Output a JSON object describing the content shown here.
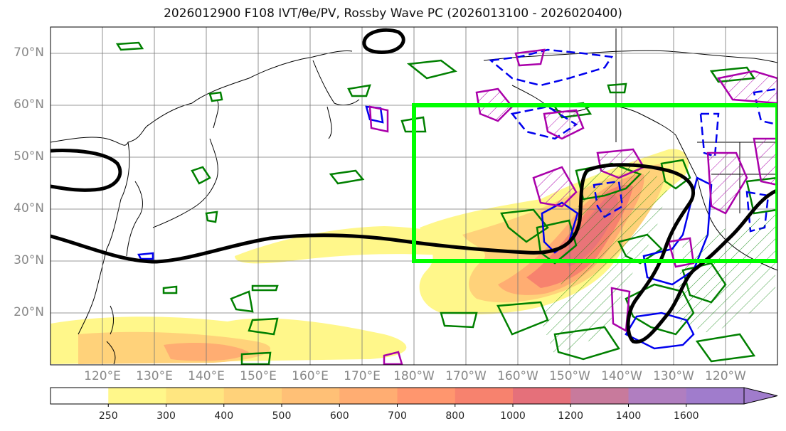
{
  "title": "2026012900 F108 IVT/θe/PV, Rossby Wave PC (2026013100 - 2026020400)",
  "lat_labels": [
    "70°N",
    "60°N",
    "50°N",
    "40°N",
    "30°N",
    "20°N"
  ],
  "lon_labels": [
    "120°E",
    "130°E",
    "140°E",
    "150°E",
    "160°E",
    "170°E",
    "180°W",
    "170°W",
    "160°W",
    "150°W",
    "140°W",
    "130°W",
    "120°W"
  ],
  "colorbar": {
    "ticks": [
      "250",
      "300",
      "400",
      "500",
      "600",
      "700",
      "800",
      "1000",
      "1200",
      "1400",
      "1600"
    ],
    "colors": [
      "#ffffff",
      "#fff78a",
      "#ffe680",
      "#ffd27a",
      "#ffc076",
      "#ffad72",
      "#ff966e",
      "#f7826e",
      "#e5707a",
      "#c87a9c",
      "#b07ec0",
      "#a07ccc"
    ],
    "extend": "max"
  },
  "map": {
    "lat_range": [
      10,
      75
    ],
    "lon_range_deg_east": [
      110,
      250
    ],
    "box_color": "#00ff00",
    "box_lat": [
      30,
      60
    ],
    "box_lon_deg_east": [
      180,
      250
    ],
    "colors": {
      "pv_contour": "#000000",
      "positive_pc": "#aa00aa",
      "negative_pc": "#0000ee",
      "theta_e": "#008000"
    }
  }
}
